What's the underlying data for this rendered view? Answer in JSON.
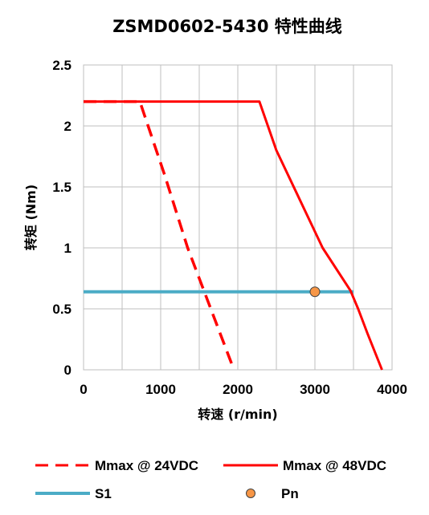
{
  "chart_data": {
    "type": "line",
    "title": "ZSMD0602-5430 特性曲线",
    "xlabel": "转速 (r/min)",
    "ylabel": "转矩 (Nm)",
    "xlim": [
      0,
      4000
    ],
    "ylim": [
      0,
      2.5
    ],
    "xticks": [
      "0",
      "1000",
      "2000",
      "3000",
      "4000"
    ],
    "yticks": [
      "0",
      "0.5",
      "1",
      "1.5",
      "2",
      "2.5"
    ],
    "grid": true,
    "legend_position": "bottom",
    "series": [
      {
        "name": "Mmax @ 24VDC",
        "style": "dashed",
        "color": "#ff0000",
        "points": [
          [
            0,
            2.2
          ],
          [
            730,
            2.2
          ],
          [
            1050,
            1.6
          ],
          [
            1350,
            1.0
          ],
          [
            1650,
            0.5
          ],
          [
            1950,
            0.0
          ]
        ]
      },
      {
        "name": "Mmax @ 48VDC",
        "style": "solid",
        "color": "#ff0000",
        "points": [
          [
            0,
            2.2
          ],
          [
            2280,
            2.2
          ],
          [
            2500,
            1.8
          ],
          [
            2800,
            1.4
          ],
          [
            3100,
            1.0
          ],
          [
            3460,
            0.65
          ],
          [
            3560,
            0.5
          ],
          [
            3680,
            0.3
          ],
          [
            3870,
            0.0
          ]
        ]
      },
      {
        "name": "S1",
        "style": "solid",
        "color": "#4bacc6",
        "points": [
          [
            0,
            0.64
          ],
          [
            3500,
            0.64
          ]
        ]
      },
      {
        "name": "Pn",
        "style": "marker",
        "color": "#f79646",
        "points": [
          [
            3000,
            0.64
          ]
        ]
      }
    ]
  }
}
